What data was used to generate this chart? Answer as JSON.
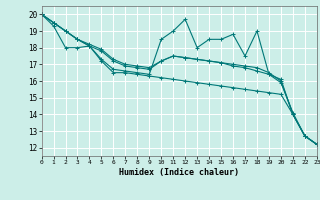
{
  "xlabel": "Humidex (Indice chaleur)",
  "bg_color": "#cceee8",
  "grid_color": "#ffffff",
  "line_color": "#007878",
  "ylim": [
    11.5,
    20.5
  ],
  "xlim": [
    0,
    23
  ],
  "yticks": [
    12,
    13,
    14,
    15,
    16,
    17,
    18,
    19,
    20
  ],
  "xticks": [
    0,
    1,
    2,
    3,
    4,
    5,
    6,
    7,
    8,
    9,
    10,
    11,
    12,
    13,
    14,
    15,
    16,
    17,
    18,
    19,
    20,
    21,
    22,
    23
  ],
  "series": [
    [
      20.0,
      19.5,
      19.0,
      18.5,
      18.1,
      17.3,
      16.7,
      16.6,
      16.5,
      16.4,
      18.5,
      19.0,
      19.7,
      18.0,
      18.5,
      18.5,
      18.8,
      17.5,
      19.0,
      16.4,
      15.9,
      14.1,
      12.7,
      12.2
    ],
    [
      20.0,
      19.5,
      19.0,
      18.5,
      18.1,
      17.8,
      17.2,
      16.9,
      16.8,
      16.7,
      17.2,
      17.5,
      17.4,
      17.3,
      17.2,
      17.1,
      17.0,
      16.9,
      16.8,
      16.5,
      16.0,
      14.0,
      12.7,
      12.2
    ],
    [
      20.0,
      19.5,
      19.0,
      18.5,
      18.2,
      17.9,
      17.3,
      17.0,
      16.9,
      16.8,
      17.2,
      17.5,
      17.4,
      17.3,
      17.2,
      17.1,
      16.9,
      16.8,
      16.6,
      16.4,
      16.1,
      14.0,
      12.7,
      12.2
    ],
    [
      20.0,
      19.3,
      18.0,
      18.0,
      18.1,
      17.2,
      16.5,
      16.5,
      16.4,
      16.3,
      16.2,
      16.1,
      16.0,
      15.9,
      15.8,
      15.7,
      15.6,
      15.5,
      15.4,
      15.3,
      15.2,
      14.0,
      12.7,
      12.2
    ]
  ]
}
